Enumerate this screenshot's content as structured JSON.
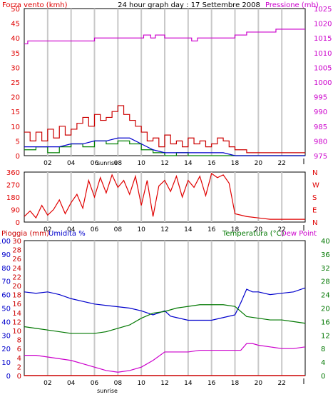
{
  "colors": {
    "wind": "#e00000",
    "gust": "#cc0000",
    "avg_wind": "#008000",
    "dir": "#e00000",
    "pressure": "#cc00cc",
    "humidity": "#0000cc",
    "temperature": "#007700",
    "dewpoint": "#cc00cc",
    "rain": "#cc0000",
    "grid": "#c8c8c8",
    "frame": "#000000"
  },
  "top": {
    "title_left": "Forza vento (kmh)",
    "title_center": "24 hour graph day : 17 Settembre 2008",
    "title_right": "Pressione (mb)",
    "sunrise_label": "sunrise"
  },
  "middle": {
    "sunrise_label": "sunrise"
  },
  "bottom": {
    "title_rain": "Pioggia (mm)",
    "title_humidity": "Umidita %",
    "title_temp": "Temperatura (°C)",
    "title_dew": "Dew Point",
    "sunrise_label": "sunrise"
  },
  "chart_data": [
    {
      "type": "line",
      "title": "24 hour graph day : 17 Settembre 2008",
      "x_ticks": [
        "02",
        "04",
        "06",
        "08",
        "10",
        "12",
        "14",
        "16",
        "18",
        "20",
        "22"
      ],
      "xlim_hours": [
        0,
        24
      ],
      "y_left": {
        "label": "Forza vento (kmh)",
        "lim": [
          0,
          50
        ],
        "ticks": [
          "0",
          "5",
          "10",
          "15",
          "20",
          "25",
          "30",
          "35",
          "40",
          "45",
          "50"
        ]
      },
      "y_right": {
        "label": "Pressione (mb)",
        "lim": [
          975,
          1025
        ],
        "ticks": [
          "975",
          "980",
          "985",
          "990",
          "995",
          "1000",
          "1005",
          "1010",
          "1015",
          "1020",
          "1025"
        ]
      },
      "series": [
        {
          "name": "gust",
          "axis": "left",
          "x": [
            0,
            0.5,
            1,
            1.5,
            2,
            2.5,
            3,
            3.5,
            4,
            4.5,
            5,
            5.5,
            6,
            6.5,
            7,
            7.5,
            8,
            8.5,
            9,
            9.5,
            10,
            10.5,
            11,
            11.5,
            12,
            12.5,
            13,
            13.5,
            14,
            14.5,
            15,
            15.5,
            16,
            16.5,
            17,
            17.5,
            18,
            19,
            20,
            21,
            22,
            23,
            24
          ],
          "y": [
            8,
            5,
            8,
            5,
            9,
            6,
            10,
            7,
            9,
            11,
            13,
            10,
            14,
            12,
            13,
            15,
            17,
            14,
            12,
            10,
            8,
            5,
            6,
            3,
            7,
            4,
            5,
            3,
            6,
            4,
            5,
            3,
            4,
            6,
            5,
            3,
            2,
            1,
            1,
            1,
            1,
            1,
            1
          ]
        },
        {
          "name": "avg_wind",
          "axis": "left",
          "x": [
            0,
            1,
            2,
            3,
            4,
            5,
            6,
            7,
            8,
            9,
            10,
            11,
            12,
            13,
            14,
            15,
            16,
            17,
            18,
            19,
            20,
            21,
            22,
            23,
            24
          ],
          "y": [
            2,
            3,
            1,
            3,
            4,
            3,
            5,
            4,
            5,
            4,
            2,
            1,
            0,
            1,
            0,
            0,
            0,
            0,
            0,
            0,
            0,
            0,
            0,
            0,
            0
          ]
        },
        {
          "name": "wind_speed",
          "axis": "left",
          "x": [
            0,
            1,
            2,
            3,
            4,
            5,
            6,
            7,
            8,
            9,
            10,
            11,
            12,
            13,
            14,
            15,
            16,
            17,
            18,
            19,
            20,
            21,
            22,
            23,
            24
          ],
          "y": [
            3,
            3,
            3,
            3,
            4,
            4,
            5,
            5,
            6,
            6,
            4,
            2,
            1,
            1,
            1,
            1,
            1,
            1,
            0,
            0,
            0,
            0,
            0,
            0,
            0
          ]
        },
        {
          "name": "pressure",
          "axis": "right",
          "x": [
            0,
            0.3,
            0.8,
            2,
            4,
            5.5,
            6,
            8,
            10,
            10.2,
            10.8,
            11.2,
            12,
            13,
            14,
            14.3,
            14.8,
            15,
            16,
            17,
            18,
            18.8,
            19,
            20,
            21,
            21.5,
            22,
            23,
            24
          ],
          "y": [
            1013,
            1014,
            1014,
            1014,
            1014,
            1014,
            1015,
            1015,
            1015,
            1016,
            1015,
            1016,
            1015,
            1015,
            1015,
            1014,
            1015,
            1015,
            1015,
            1015,
            1016,
            1016,
            1017,
            1017,
            1017,
            1018,
            1018,
            1018,
            1018
          ]
        }
      ]
    },
    {
      "type": "scatter",
      "title": "",
      "x_ticks": [
        "02",
        "04",
        "06",
        "08",
        "10",
        "12",
        "14",
        "16",
        "18",
        "20",
        "22"
      ],
      "y_left_ticks": [
        "0",
        "90",
        "180",
        "270",
        "360"
      ],
      "y_right_ticks": [
        "N",
        "W",
        "S",
        "E",
        "N"
      ],
      "ylim": [
        0,
        360
      ],
      "series": [
        {
          "name": "wind_direction",
          "x": [
            0,
            0.5,
            1,
            1.5,
            2,
            2.5,
            3,
            3.5,
            4,
            4.5,
            5,
            5.5,
            6,
            6.5,
            7,
            7.5,
            8,
            8.5,
            9,
            9.5,
            10,
            10.5,
            11,
            11.5,
            12,
            12.5,
            13,
            13.5,
            14,
            14.5,
            15,
            15.5,
            16,
            16.5,
            17,
            17.5,
            18,
            19,
            20,
            21,
            22,
            23,
            24
          ],
          "y": [
            40,
            80,
            30,
            120,
            50,
            90,
            160,
            60,
            140,
            200,
            100,
            300,
            180,
            320,
            210,
            340,
            250,
            300,
            200,
            330,
            120,
            300,
            40,
            260,
            300,
            220,
            330,
            180,
            300,
            250,
            330,
            190,
            350,
            320,
            340,
            280,
            60,
            40,
            30,
            20,
            20,
            20,
            20
          ]
        }
      ]
    },
    {
      "type": "line",
      "title": "",
      "x_ticks": [
        "02",
        "04",
        "06",
        "08",
        "10",
        "12",
        "14",
        "16",
        "18",
        "20",
        "22"
      ],
      "y_rain": {
        "label": "Pioggia (mm)",
        "lim": [
          0,
          30
        ],
        "ticks": [
          "0",
          "2",
          "4",
          "6",
          "8",
          "10",
          "12",
          "14",
          "16",
          "18",
          "20",
          "22",
          "24",
          "26",
          "28",
          "30"
        ]
      },
      "y_humidity": {
        "label": "Umidita %",
        "lim": [
          0,
          100
        ],
        "ticks": [
          "0",
          "10",
          "20",
          "30",
          "40",
          "50",
          "60",
          "70",
          "80",
          "90",
          "100"
        ]
      },
      "y_temp": {
        "label": "Temperatura (°C)",
        "lim": [
          0,
          40
        ],
        "ticks": [
          "0",
          "4",
          "8",
          "12",
          "16",
          "20",
          "24",
          "28",
          "32",
          "36",
          "40"
        ]
      },
      "series": [
        {
          "name": "humidity",
          "axis": "humidity",
          "x": [
            0,
            1,
            2,
            3,
            4,
            5,
            6,
            7,
            8,
            9,
            10,
            11,
            12,
            12.5,
            13,
            14,
            15,
            16,
            17,
            18,
            18.5,
            19,
            19.5,
            20,
            21,
            22,
            23,
            24
          ],
          "y": [
            62,
            61,
            62,
            60,
            57,
            55,
            53,
            52,
            51,
            50,
            48,
            45,
            48,
            44,
            43,
            41,
            41,
            41,
            43,
            45,
            54,
            64,
            62,
            62,
            60,
            61,
            62,
            65
          ]
        },
        {
          "name": "temperature",
          "axis": "temp",
          "x": [
            0,
            1,
            2,
            3,
            4,
            5,
            6,
            7,
            8,
            9,
            10,
            11,
            12,
            13,
            14,
            15,
            16,
            17,
            18,
            19,
            20,
            21,
            22,
            23,
            24
          ],
          "y": [
            14.5,
            14,
            13.5,
            13,
            12.5,
            12.5,
            12.5,
            13,
            14,
            15,
            17,
            18.5,
            19,
            20,
            20.5,
            21,
            21,
            21,
            20.5,
            17.5,
            17,
            16.5,
            16.5,
            16,
            15.5
          ]
        },
        {
          "name": "dew_point",
          "axis": "temp",
          "x": [
            0,
            1,
            2,
            3,
            4,
            5,
            6,
            7,
            8,
            9,
            10,
            11,
            12,
            13,
            14,
            15,
            16,
            17,
            18,
            18.5,
            19,
            19.5,
            20,
            21,
            22,
            23,
            24
          ],
          "y": [
            6,
            6,
            5.5,
            5,
            4.5,
            3.5,
            2.5,
            1.5,
            1,
            1.5,
            2.5,
            4.5,
            7,
            7,
            7,
            7.5,
            7.5,
            7.5,
            7.5,
            7.5,
            9.5,
            9.5,
            9,
            8.5,
            8,
            8,
            8.5
          ]
        },
        {
          "name": "rain",
          "axis": "rain",
          "x": [
            0,
            24
          ],
          "y": [
            0,
            0
          ]
        }
      ]
    }
  ]
}
